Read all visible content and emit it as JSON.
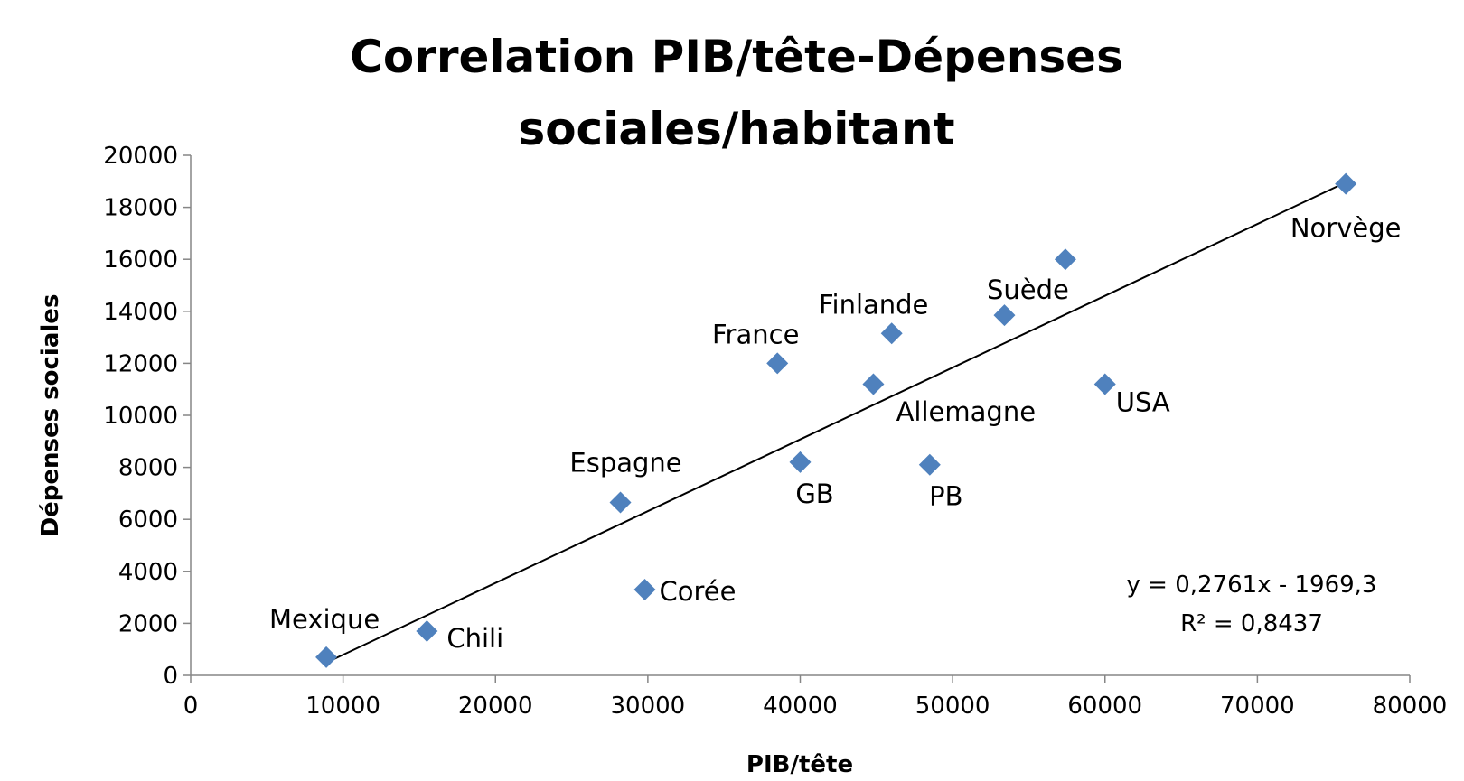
{
  "chart_data": {
    "type": "scatter",
    "title": [
      "Correlation PIB/tête-Dépenses",
      "sociales/habitant"
    ],
    "xlabel": "PIB/tête",
    "ylabel": "Dépenses sociales",
    "xlim": [
      0,
      80000
    ],
    "ylim": [
      0,
      20000
    ],
    "x_ticks": [
      0,
      10000,
      20000,
      30000,
      40000,
      50000,
      60000,
      70000,
      80000
    ],
    "y_ticks": [
      0,
      2000,
      4000,
      6000,
      8000,
      10000,
      12000,
      14000,
      16000,
      18000,
      20000
    ],
    "marker_color": "#4F81BD",
    "points": [
      {
        "x": 8900,
        "y": 700,
        "label": "Mexique"
      },
      {
        "x": 15500,
        "y": 1700,
        "label": "Chili"
      },
      {
        "x": 28200,
        "y": 6650,
        "label": "Espagne"
      },
      {
        "x": 29800,
        "y": 3300,
        "label": "Corée"
      },
      {
        "x": 38500,
        "y": 12000,
        "label": "France"
      },
      {
        "x": 40000,
        "y": 8200,
        "label": "GB"
      },
      {
        "x": 44800,
        "y": 11200,
        "label": ""
      },
      {
        "x": 46000,
        "y": 13150,
        "label": "Finlande"
      },
      {
        "x": 48500,
        "y": 8100,
        "label": "PB"
      },
      {
        "x": 53400,
        "y": 13850,
        "label": "Suède"
      },
      {
        "x": 57400,
        "y": 16000,
        "label": ""
      },
      {
        "x": 60000,
        "y": 11200,
        "label": "USA"
      },
      {
        "x": 75800,
        "y": 18900,
        "label": "Norvège"
      }
    ],
    "free_labels": [
      {
        "text": "Allemagne",
        "near_x": 48500,
        "near_y": 9800
      }
    ],
    "trendline": {
      "type": "linear",
      "slope": 0.2761,
      "intercept": -1969.3,
      "x_range": [
        8900,
        75800
      ],
      "equation_label": "y = 0,2761x - 1969,3",
      "r2_label": "R² = 0,8437"
    }
  }
}
